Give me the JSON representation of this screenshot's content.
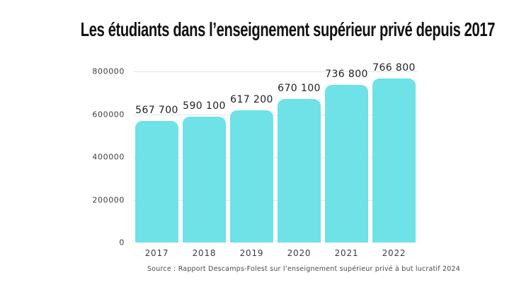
{
  "title": "Les étudiants dans l’enseignement supérieur privé depuis 2017",
  "source": "Source : Rapport Descamps-Folest sur l’enseignement supérieur privé à but lucratif 2024",
  "colors": {
    "bar": "#6EE2E7",
    "grid": "#e4e4e4",
    "title_text": "#111111",
    "value_label": "#1f1f1f",
    "axis_label": "#3d3d3d"
  },
  "chart_data": {
    "type": "bar",
    "title": "Les étudiants dans l’enseignement supérieur privé depuis 2017",
    "categories": [
      "2017",
      "2018",
      "2019",
      "2020",
      "2021",
      "2022"
    ],
    "values": [
      567700,
      590100,
      617200,
      670100,
      736800,
      766800
    ],
    "value_labels": [
      "567 700",
      "590 100",
      "617 200",
      "670 100",
      "736 800",
      "766 800"
    ],
    "yticks": [
      0,
      200000,
      400000,
      600000,
      800000
    ],
    "ytick_labels": [
      "0",
      "200000",
      "400000",
      "600000",
      "800000"
    ],
    "ylim": [
      0,
      800000
    ],
    "xlabel": "",
    "ylabel": "",
    "grid": "horizontal-at-yticks",
    "legend": "none",
    "bar_corner": "rounded-top",
    "annotation": "Source : Rapport Descamps-Folest sur l’enseignement supérieur privé à but lucratif 2024"
  }
}
